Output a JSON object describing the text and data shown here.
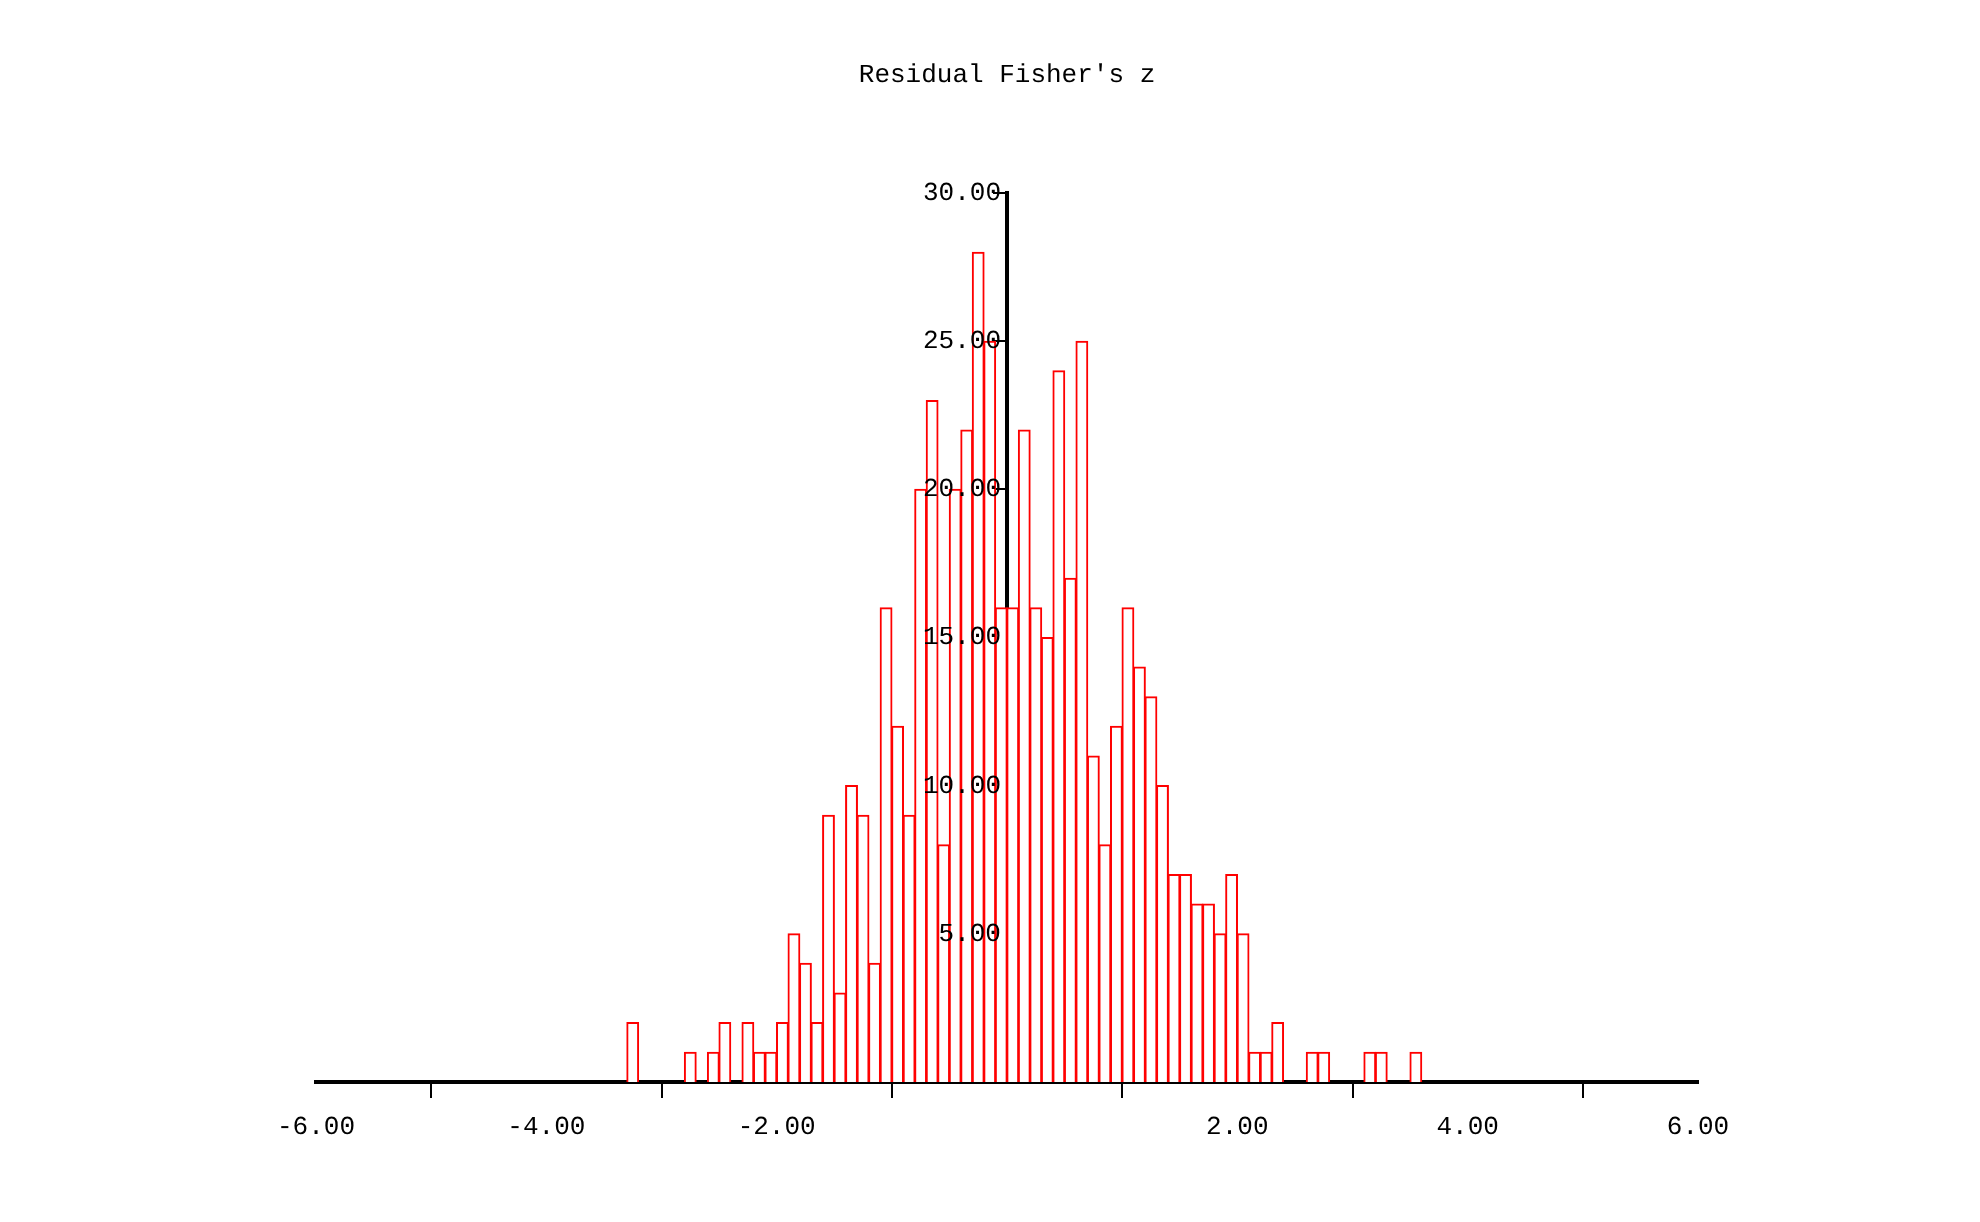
{
  "chart_data": {
    "type": "histogram",
    "title": "Residual Fisher's z",
    "bins": [
      -3.3,
      -3.2,
      -3.1,
      -3.0,
      -2.9,
      -2.8,
      -2.7,
      -2.6,
      -2.5,
      -2.4,
      -2.3,
      -2.2,
      -2.1,
      -2.0,
      -1.9,
      -1.8,
      -1.7,
      -1.6,
      -1.5,
      -1.4,
      -1.3,
      -1.2,
      -1.1,
      -1.0,
      -0.9,
      -0.8,
      -0.7,
      -0.6,
      -0.5,
      -0.4,
      -0.3,
      -0.2,
      -0.1,
      0.0,
      0.1,
      0.2,
      0.3,
      0.4,
      0.5,
      0.6,
      0.7,
      0.8,
      0.9,
      1.0,
      1.1,
      1.2,
      1.3,
      1.4,
      1.5,
      1.6,
      1.7,
      1.8,
      1.9,
      2.0,
      2.1,
      2.2,
      2.3,
      2.4,
      2.5,
      2.6,
      2.7,
      2.8,
      2.9,
      3.0,
      3.1,
      3.2,
      3.3,
      3.4,
      3.5,
      3.6
    ],
    "values": [
      2,
      0,
      0,
      0,
      0,
      1,
      0,
      1,
      2,
      0,
      2,
      1,
      1,
      2,
      5,
      4,
      2,
      9,
      3,
      10,
      9,
      4,
      16,
      12,
      9,
      20,
      23,
      8,
      20,
      22,
      28,
      25,
      16,
      16,
      22,
      16,
      15,
      24,
      17,
      25,
      11,
      8,
      12,
      16,
      14,
      13,
      10,
      7,
      7,
      6,
      6,
      5,
      7,
      5,
      1,
      1,
      2,
      0,
      0,
      1,
      1,
      0,
      0,
      0,
      1,
      1,
      0,
      0,
      1
    ],
    "color": "#ff0000",
    "xlim": [
      -6,
      6
    ],
    "xticks": [
      {
        "value": -6,
        "label": "-6.00"
      },
      {
        "value": -4,
        "label": "-4.00"
      },
      {
        "value": -2,
        "label": "-2.00"
      },
      {
        "value": 0,
        "label": null
      },
      {
        "value": 2,
        "label": "2.00"
      },
      {
        "value": 4,
        "label": "4.00"
      },
      {
        "value": 6,
        "label": "6.00"
      }
    ],
    "ylim": [
      0,
      30
    ],
    "yticks": [
      {
        "value": 5,
        "label": "5.00"
      },
      {
        "value": 10,
        "label": "10.00"
      },
      {
        "value": 15,
        "label": "15.00"
      },
      {
        "value": 20,
        "label": "20.00"
      },
      {
        "value": 25,
        "label": "25.00"
      },
      {
        "value": 30,
        "label": "30.00"
      }
    ],
    "grid": false,
    "legend": false
  }
}
